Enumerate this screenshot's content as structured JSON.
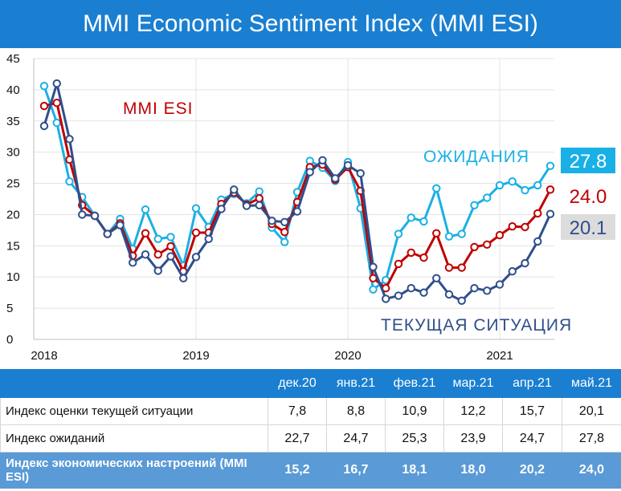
{
  "title": "MMI Economic Sentiment Index (MMI ESI)",
  "chart_data": {
    "type": "line",
    "title": "MMI Economic Sentiment Index (MMI ESI)",
    "ylim": [
      0,
      45
    ],
    "y_ticks": [
      "0",
      "5",
      "10",
      "15",
      "20",
      "25",
      "30",
      "35",
      "40",
      "45"
    ],
    "x_ticks": [
      "2018",
      "2019",
      "2020",
      "2021"
    ],
    "x": [
      "2018-01",
      "2018-02",
      "2018-03",
      "2018-04",
      "2018-05",
      "2018-06",
      "2018-07",
      "2018-08",
      "2018-09",
      "2018-10",
      "2018-11",
      "2018-12",
      "2019-01",
      "2019-02",
      "2019-03",
      "2019-04",
      "2019-05",
      "2019-06",
      "2019-07",
      "2019-08",
      "2019-09",
      "2019-10",
      "2019-11",
      "2019-12",
      "2020-01",
      "2020-02",
      "2020-03",
      "2020-04",
      "2020-05",
      "2020-06",
      "2020-07",
      "2020-08",
      "2020-09",
      "2020-10",
      "2020-11",
      "2020-12",
      "2021-01",
      "2021-02",
      "2021-03",
      "2021-04",
      "2021-05"
    ],
    "series": [
      {
        "name": "ОЖИДАНИЯ",
        "color": "#19b0e6",
        "end_label": "27.8",
        "values": [
          40.6,
          34.7,
          25.3,
          22.8,
          19.8,
          16.9,
          19.3,
          14.5,
          20.8,
          16.1,
          16.4,
          11.8,
          21.0,
          18.0,
          22.4,
          23.3,
          21.8,
          23.7,
          17.9,
          15.6,
          23.6,
          28.6,
          27.5,
          25.4,
          28.4,
          21.0,
          8.0,
          9.5,
          16.9,
          19.5,
          18.9,
          24.2,
          16.5,
          16.9,
          21.5,
          22.7,
          24.7,
          25.3,
          23.9,
          24.7,
          27.8
        ]
      },
      {
        "name": "MMI ESI",
        "color": "#c00000",
        "end_label": "24.0",
        "values": [
          37.4,
          37.9,
          28.8,
          21.5,
          19.8,
          16.9,
          18.6,
          13.4,
          17.0,
          13.6,
          14.9,
          10.9,
          17.1,
          17.1,
          21.7,
          23.5,
          21.6,
          22.6,
          18.5,
          17.2,
          22.0,
          27.6,
          28.0,
          25.6,
          27.6,
          23.8,
          9.8,
          8.2,
          12.1,
          13.9,
          13.1,
          17.0,
          11.5,
          11.5,
          14.8,
          15.2,
          16.7,
          18.1,
          18.0,
          20.2,
          24.0
        ]
      },
      {
        "name": "ТЕКУЩАЯ СИТУАЦИЯ",
        "color": "#2f4e8c",
        "end_label": "20.1",
        "values": [
          34.2,
          41.0,
          32.1,
          20.0,
          19.8,
          16.9,
          18.3,
          12.3,
          13.6,
          11.0,
          13.3,
          9.8,
          13.2,
          16.1,
          20.9,
          24.0,
          21.4,
          21.5,
          19.0,
          18.8,
          20.5,
          26.8,
          28.7,
          25.8,
          27.9,
          26.6,
          11.6,
          6.5,
          7.0,
          8.2,
          7.5,
          9.8,
          7.2,
          6.2,
          8.2,
          7.8,
          8.8,
          10.9,
          12.2,
          15.7,
          20.1
        ]
      }
    ]
  },
  "table": {
    "header": [
      "",
      "дек.20",
      "янв.21",
      "фев.21",
      "мар.21",
      "апр.21",
      "май.21"
    ],
    "rows": [
      {
        "label": "Индекс оценки текущей ситуации",
        "values": [
          "7,8",
          "8,8",
          "10,9",
          "12,2",
          "15,7",
          "20,1"
        ]
      },
      {
        "label": "Индекс ожиданий",
        "values": [
          "22,7",
          "24,7",
          "25,3",
          "23,9",
          "24,7",
          "27,8"
        ]
      },
      {
        "label": "Индекс экономических настроений (MMI ESI)",
        "values": [
          "15,2",
          "16,7",
          "18,1",
          "18,0",
          "20,2",
          "24,0"
        ]
      }
    ]
  }
}
